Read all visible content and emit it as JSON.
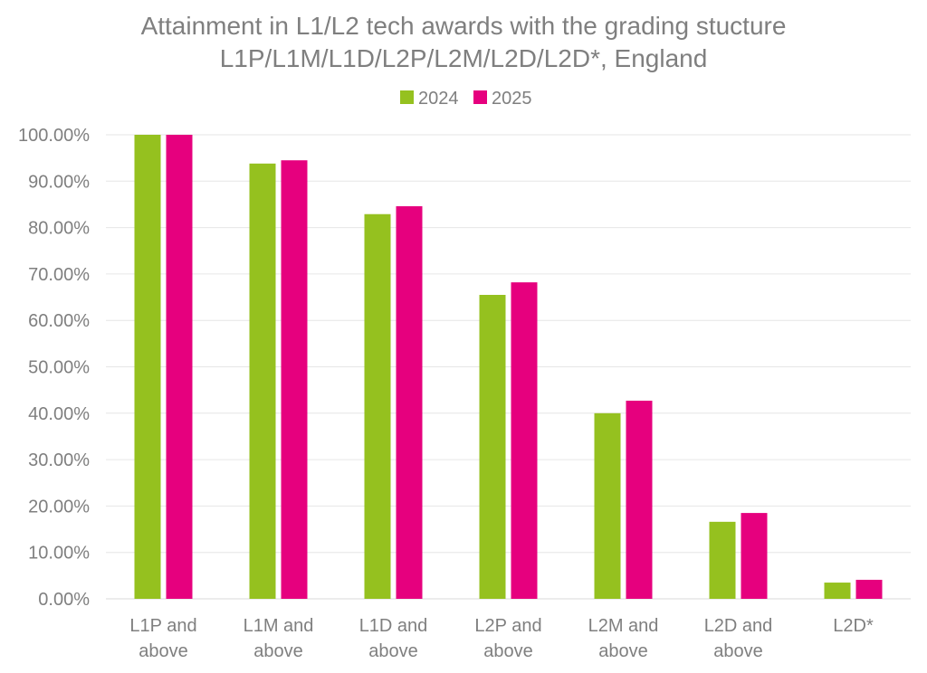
{
  "chart_data": {
    "type": "bar",
    "title_lines": [
      "Attainment in L1/L2 tech awards with the grading stucture",
      "L1P/L1M/L1D/L2P/L2M/L2D/L2D*, England"
    ],
    "categories": [
      [
        "L1P and",
        "above"
      ],
      [
        "L1M and",
        "above"
      ],
      [
        "L1D and",
        "above"
      ],
      [
        "L2P and",
        "above"
      ],
      [
        "L2M and",
        "above"
      ],
      [
        "L2D and",
        "above"
      ],
      [
        "L2D*"
      ]
    ],
    "series": [
      {
        "name": "2024",
        "color": "#95c11f",
        "values": [
          100.0,
          93.8,
          82.9,
          65.5,
          40.0,
          16.6,
          3.5
        ]
      },
      {
        "name": "2025",
        "color": "#e6007e",
        "values": [
          100.0,
          94.5,
          84.6,
          68.2,
          42.7,
          18.5,
          4.1
        ]
      }
    ],
    "ylim": [
      0,
      100
    ],
    "yticks": [
      "0.00%",
      "10.00%",
      "20.00%",
      "30.00%",
      "40.00%",
      "50.00%",
      "60.00%",
      "70.00%",
      "80.00%",
      "90.00%",
      "100.00%"
    ],
    "ytick_values": [
      0,
      10,
      20,
      30,
      40,
      50,
      60,
      70,
      80,
      90,
      100
    ],
    "grid": true,
    "legend_position": "top-center",
    "xlabel": "",
    "ylabel": ""
  }
}
